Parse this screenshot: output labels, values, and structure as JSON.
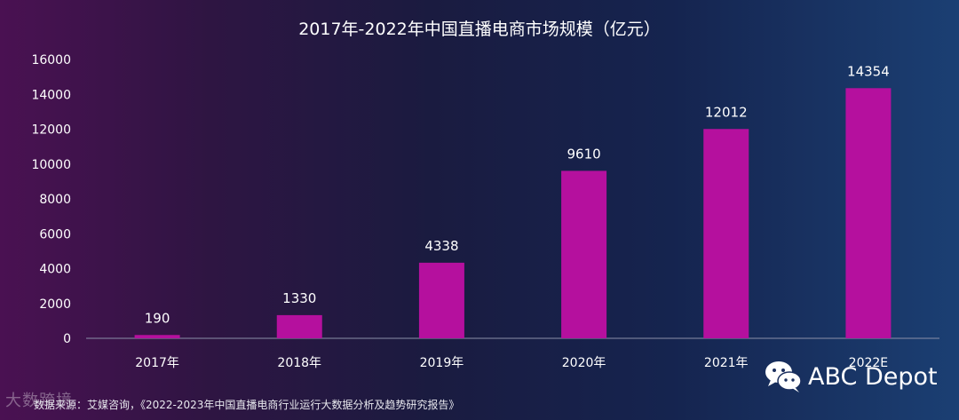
{
  "chart_data": {
    "type": "bar",
    "title": "2017年-2022年中国直播电商市场规模（亿元）",
    "categories": [
      "2017年",
      "2018年",
      "2019年",
      "2020年",
      "2021年",
      "2022E"
    ],
    "values": [
      190,
      1330,
      4338,
      9610,
      12012,
      14354
    ],
    "value_labels": [
      "190",
      "1330",
      "4338",
      "9610",
      "12012",
      "14354"
    ],
    "yticks": [
      "0",
      "2000",
      "4000",
      "6000",
      "8000",
      "10000",
      "12000",
      "14000",
      "16000"
    ],
    "ylim": [
      0,
      16000
    ],
    "grid": false,
    "legend": "none",
    "bar_color": "#b5109e"
  },
  "footer": {
    "source": "数据来源：艾媒咨询，《2022-2023年中国直播电商行业运行大数据分析及趋势研究报告》",
    "watermark": "大数跨境"
  },
  "brand": {
    "name": "ABC Depot",
    "icon": "wechat-icon"
  }
}
